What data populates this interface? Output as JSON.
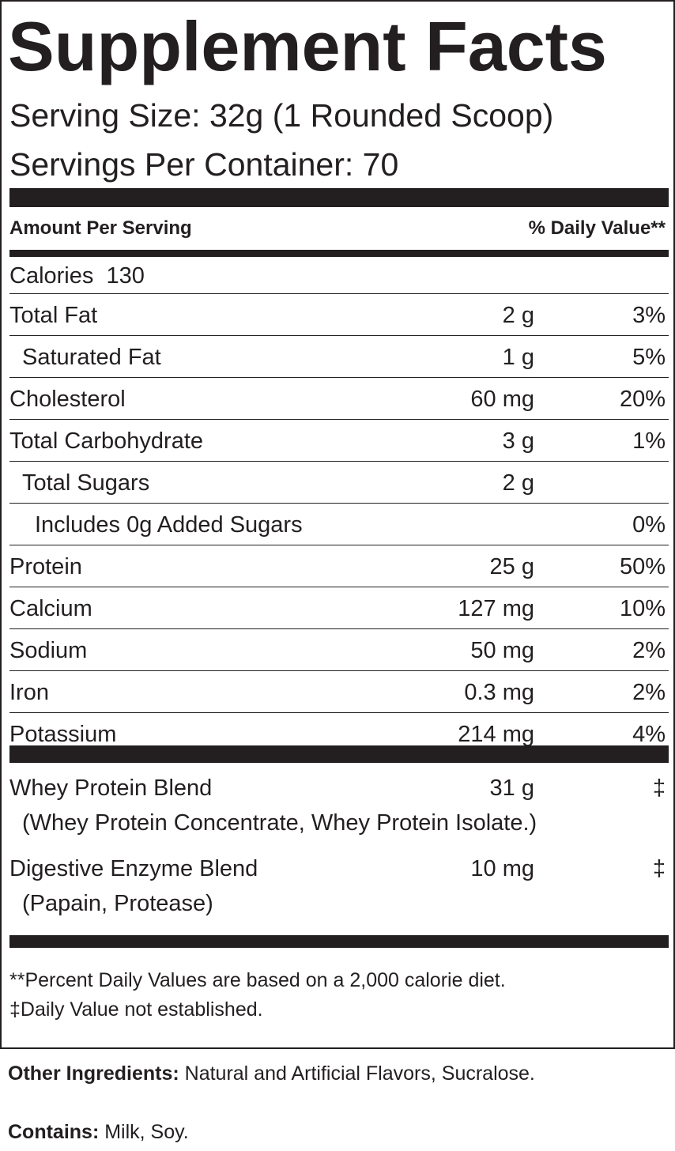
{
  "header": {
    "title": "Supplement Facts",
    "serving_size": "Serving Size: 32g (1 Rounded Scoop)",
    "servings_per_container": "Servings Per Container: 70"
  },
  "table": {
    "columns": [
      "Amount Per Serving",
      "% Daily Value**"
    ],
    "calories": "Calories  130",
    "rows": [
      {
        "nutrient": "Total Fat",
        "amount": "2 g",
        "daily_value": "3%"
      },
      {
        "nutrient": "Saturated Fat",
        "amount": "1 g",
        "daily_value": "5%"
      },
      {
        "nutrient": "Cholesterol",
        "amount": "60 mg",
        "daily_value": "20%"
      },
      {
        "nutrient": "Total Carbohydrate",
        "amount": "3 g",
        "daily_value": "1%"
      },
      {
        "nutrient": "Total Sugars",
        "amount": "2 g"
      },
      {
        "nutrient": "Includes 0g Added Sugars",
        "daily_value": "0%"
      },
      {
        "nutrient": "Protein",
        "amount": "25 g",
        "daily_value": "50%"
      },
      {
        "nutrient": "Calcium",
        "amount": "127 mg",
        "daily_value": "10%"
      },
      {
        "nutrient": "Sodium",
        "amount": "50 mg",
        "daily_value": "2%"
      },
      {
        "nutrient": "Iron",
        "amount": "0.3 mg",
        "daily_value": "2%"
      },
      {
        "nutrient": "Potassium",
        "amount": "214 mg",
        "daily_value": "4%"
      }
    ],
    "blends": [
      {
        "name": "Whey Protein Blend",
        "amount": "31 g",
        "daily_value": "‡",
        "ingredients": "(Whey Protein Concentrate, Whey Protein Isolate.)"
      },
      {
        "name": "Digestive Enzyme Blend",
        "amount": "10 mg",
        "daily_value": "‡",
        "ingredients": "(Papain, Protease)"
      }
    ]
  },
  "footnotes": [
    "**Percent Daily Values are based on a 2,000 calorie diet.",
    "‡Daily Value not established."
  ],
  "other_ingredients": {
    "label": "Other Ingredients:",
    "text": "Natural and Artificial Flavors, Sucralose."
  },
  "contains": {
    "label": "Contains:",
    "text": "Milk, Soy."
  }
}
